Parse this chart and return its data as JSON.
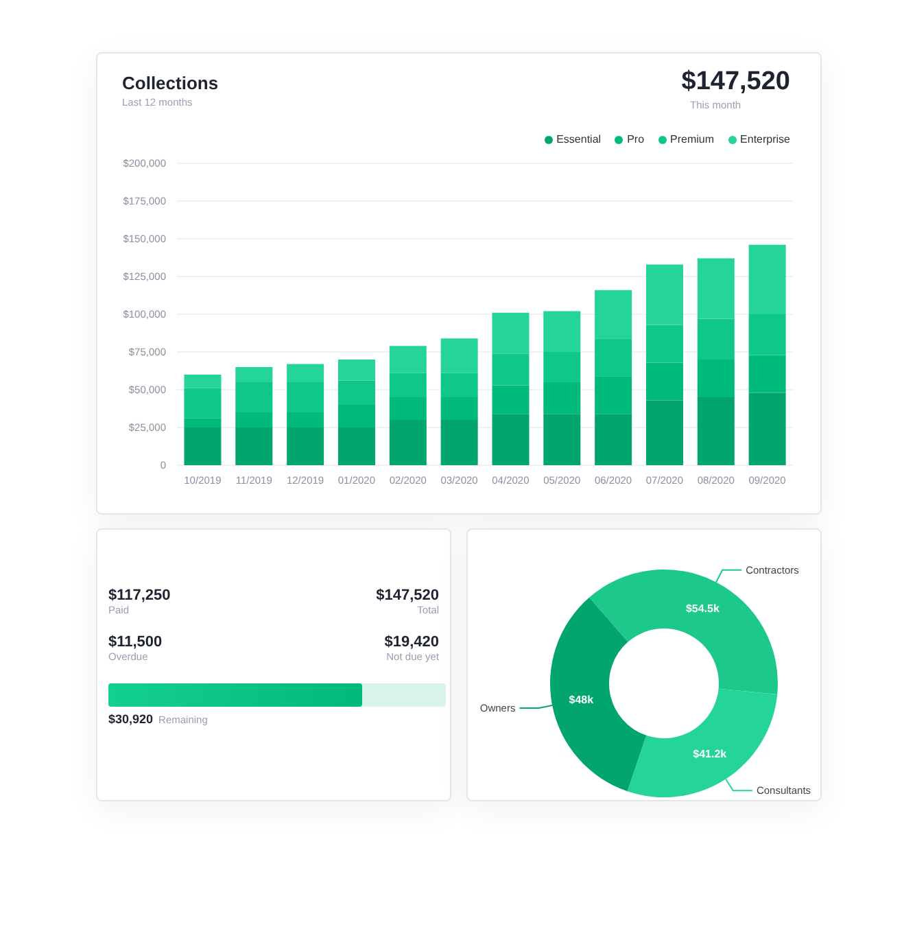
{
  "chart_data": [
    {
      "type": "bar",
      "title": "Collections",
      "subtitle": "Last 12 months",
      "annotations": [
        "$147,520",
        "This month"
      ],
      "categories": [
        "10/2019",
        "11/2019",
        "12/2019",
        "01/2020",
        "02/2020",
        "03/2020",
        "04/2020",
        "05/2020",
        "06/2020",
        "07/2020",
        "08/2020",
        "09/2020"
      ],
      "stacked": true,
      "series": [
        {
          "name": "Essential",
          "color": "#02a56e",
          "values": [
            25000,
            25000,
            25000,
            25000,
            30000,
            30000,
            34000,
            34000,
            34000,
            43000,
            45000,
            48000
          ]
        },
        {
          "name": "Pro",
          "color": "#00b97c",
          "values": [
            6000,
            10000,
            10000,
            15000,
            15000,
            15000,
            19000,
            21000,
            25000,
            25000,
            25000,
            25000
          ]
        },
        {
          "name": "Premium",
          "color": "#0fc78a",
          "values": [
            20000,
            20000,
            20000,
            16000,
            16000,
            16000,
            21000,
            20000,
            25000,
            25000,
            27000,
            27000
          ]
        },
        {
          "name": "Enterprise",
          "color": "#24d597",
          "values": [
            9000,
            10000,
            12000,
            14000,
            18000,
            23000,
            27000,
            27000,
            32000,
            40000,
            40000,
            46000
          ]
        }
      ],
      "ylim": [
        0,
        200000
      ],
      "yticks": [
        {
          "value": 0,
          "label": "0"
        },
        {
          "value": 25000,
          "label": "$25,000"
        },
        {
          "value": 50000,
          "label": "$50,000"
        },
        {
          "value": 75000,
          "label": "$75,000"
        },
        {
          "value": 100000,
          "label": "$100,000"
        },
        {
          "value": 125000,
          "label": "$125,000"
        },
        {
          "value": 150000,
          "label": "$150,000"
        },
        {
          "value": 175000,
          "label": "$175,000"
        },
        {
          "value": 200000,
          "label": "$200,000"
        }
      ],
      "grid": "y",
      "legend": "top right"
    },
    {
      "type": "other",
      "annotations": [
        "$117,250",
        "Paid",
        "$147,520",
        "Total",
        "$11,500",
        "Overdue",
        "$19,420",
        "Not due yet",
        "$30,920",
        "Remaining"
      ]
    },
    {
      "type": "donut",
      "categories": [
        "Contractors",
        "Consultants",
        "Owners"
      ],
      "values": [
        54.5,
        41.2,
        48
      ],
      "colors": [
        "#1cc98b",
        "#24d597",
        "#02a56e"
      ],
      "value_labels": [
        "$54.5k",
        "$41.2k",
        "$48k"
      ]
    }
  ]
}
